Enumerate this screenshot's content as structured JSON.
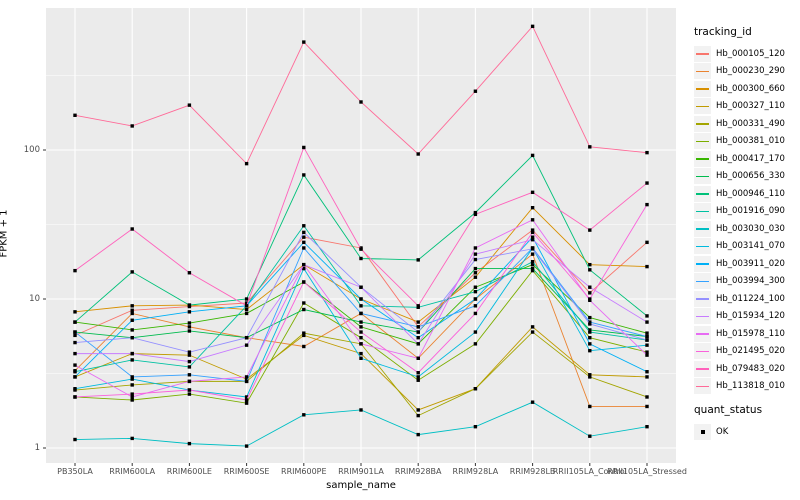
{
  "figure": {
    "background": "#FFFFFF",
    "panel_background": "#EBEBEB",
    "gridline_color": "#FFFFFF",
    "tick_label_color": "#4D4D4D",
    "marker_color": "#000000"
  },
  "chart_data": {
    "type": "line",
    "title": "",
    "xlabel": "sample_name",
    "ylabel": "FPKM + 1",
    "y_scale": "log10",
    "y_ticks": [
      1,
      10,
      100
    ],
    "y_range_approx": [
      0.79,
      900
    ],
    "grid": "major-white-and-minor-white",
    "legend_position": "right",
    "point_marker": "black-square",
    "categories": [
      "PB350LA",
      "RRIM600LA",
      "RRIM600LE",
      "RRIM600SE",
      "RRIM600PE",
      "RRIM901LA",
      "RRIM928BA",
      "RRIM928LA",
      "RRIM928LB",
      "RRII105LA_Control",
      "RRII105LA_Stressed"
    ],
    "series": [
      {
        "name": "Hb_000105_120",
        "color": "#F8766D",
        "values": [
          5.7,
          8.4,
          8.9,
          9.4,
          26,
          22,
          6.5,
          15,
          29,
          11,
          24
        ]
      },
      {
        "name": "Hb_000230_290",
        "color": "#EA8331",
        "values": [
          3.3,
          8.0,
          6.5,
          5.5,
          4.8,
          8.0,
          4.0,
          10,
          20,
          1.9,
          1.9
        ]
      },
      {
        "name": "Hb_000300_660",
        "color": "#D89000",
        "values": [
          8.2,
          9.0,
          9.1,
          8.5,
          17,
          10,
          7.0,
          14,
          41,
          17,
          16.5
        ]
      },
      {
        "name": "Hb_000327_110",
        "color": "#C09B00",
        "values": [
          3.0,
          4.3,
          4.2,
          2.9,
          5.7,
          4.3,
          1.8,
          2.5,
          6.5,
          3.1,
          3.0
        ]
      },
      {
        "name": "Hb_000331_490",
        "color": "#A3A500",
        "values": [
          2.45,
          2.65,
          2.8,
          2.8,
          5.9,
          5.0,
          1.65,
          2.5,
          6.0,
          3.0,
          2.2
        ]
      },
      {
        "name": "Hb_000381_010",
        "color": "#7CAE00",
        "values": [
          2.2,
          2.1,
          2.3,
          2.0,
          9.4,
          5.5,
          2.85,
          5.0,
          15.5,
          5.5,
          4.4
        ]
      },
      {
        "name": "Hb_000417_170",
        "color": "#39B600",
        "values": [
          7.0,
          6.2,
          6.9,
          8.0,
          13,
          6.5,
          5.0,
          12,
          17,
          7.5,
          5.9
        ]
      },
      {
        "name": "Hb_000656_330",
        "color": "#00BB4E",
        "values": [
          6.0,
          5.5,
          6.1,
          5.5,
          8.5,
          7.0,
          6.0,
          16,
          16,
          6.2,
          5.6
        ]
      },
      {
        "name": "Hb_000946_110",
        "color": "#00C079",
        "values": [
          7.0,
          15.2,
          9.1,
          10,
          68,
          18.7,
          18.3,
          38,
          92,
          15.7,
          7.7
        ]
      },
      {
        "name": "Hb_001916_090",
        "color": "#00C1A2",
        "values": [
          3.25,
          3.9,
          3.5,
          9.0,
          31,
          9.0,
          8.8,
          11.2,
          17.8,
          6.0,
          5.3
        ]
      },
      {
        "name": "Hb_003030_030",
        "color": "#00BFC4",
        "values": [
          1.14,
          1.16,
          1.07,
          1.03,
          1.67,
          1.8,
          1.23,
          1.39,
          2.03,
          1.2,
          1.39
        ]
      },
      {
        "name": "Hb_003141_070",
        "color": "#00BADE",
        "values": [
          2.5,
          2.9,
          2.45,
          2.2,
          16,
          4.0,
          3.0,
          6.0,
          22,
          4.5,
          4.9
        ]
      },
      {
        "name": "Hb_003911_020",
        "color": "#00B0F6",
        "values": [
          3.0,
          7.2,
          8.2,
          9.0,
          24,
          10,
          5.5,
          10,
          26,
          5.0,
          3.25
        ]
      },
      {
        "name": "Hb_003994_300",
        "color": "#35A2FF",
        "values": [
          6.0,
          3.0,
          3.1,
          2.8,
          22,
          8.0,
          6.5,
          9.0,
          22,
          7.0,
          5.6
        ]
      },
      {
        "name": "Hb_011224_100",
        "color": "#9590FF",
        "values": [
          5.1,
          5.5,
          4.4,
          5.5,
          28,
          12,
          6.0,
          18.4,
          21.7,
          6.8,
          5.3
        ]
      },
      {
        "name": "Hb_015934_120",
        "color": "#C77CFF",
        "values": [
          4.3,
          4.3,
          3.8,
          4.9,
          17,
          12,
          5.0,
          20,
          25,
          12,
          7.0
        ]
      },
      {
        "name": "Hb_015978_110",
        "color": "#E76BF3",
        "values": [
          3.6,
          2.2,
          2.8,
          3.0,
          17,
          5.0,
          4.0,
          22,
          34,
          9.8,
          4.2
        ]
      },
      {
        "name": "Hb_021495_020",
        "color": "#FA62DB",
        "values": [
          2.2,
          2.3,
          2.45,
          2.1,
          13,
          6.0,
          3.2,
          8.0,
          28,
          10,
          43
        ]
      },
      {
        "name": "Hb_079483_020",
        "color": "#FF62BC",
        "values": [
          15.5,
          29.5,
          15,
          9.0,
          104,
          21.6,
          9.0,
          37,
          52,
          29,
          60
        ]
      },
      {
        "name": "Hb_113818_010",
        "color": "#FF6A98",
        "values": [
          171,
          145,
          200,
          81,
          530,
          210,
          94,
          248,
          676,
          105,
          96
        ]
      }
    ],
    "legend": {
      "color_legend_title": "tracking_id",
      "shape_legend_title": "quant_status",
      "shape_items": [
        {
          "label": "OK",
          "marker": "black-square"
        }
      ]
    }
  }
}
